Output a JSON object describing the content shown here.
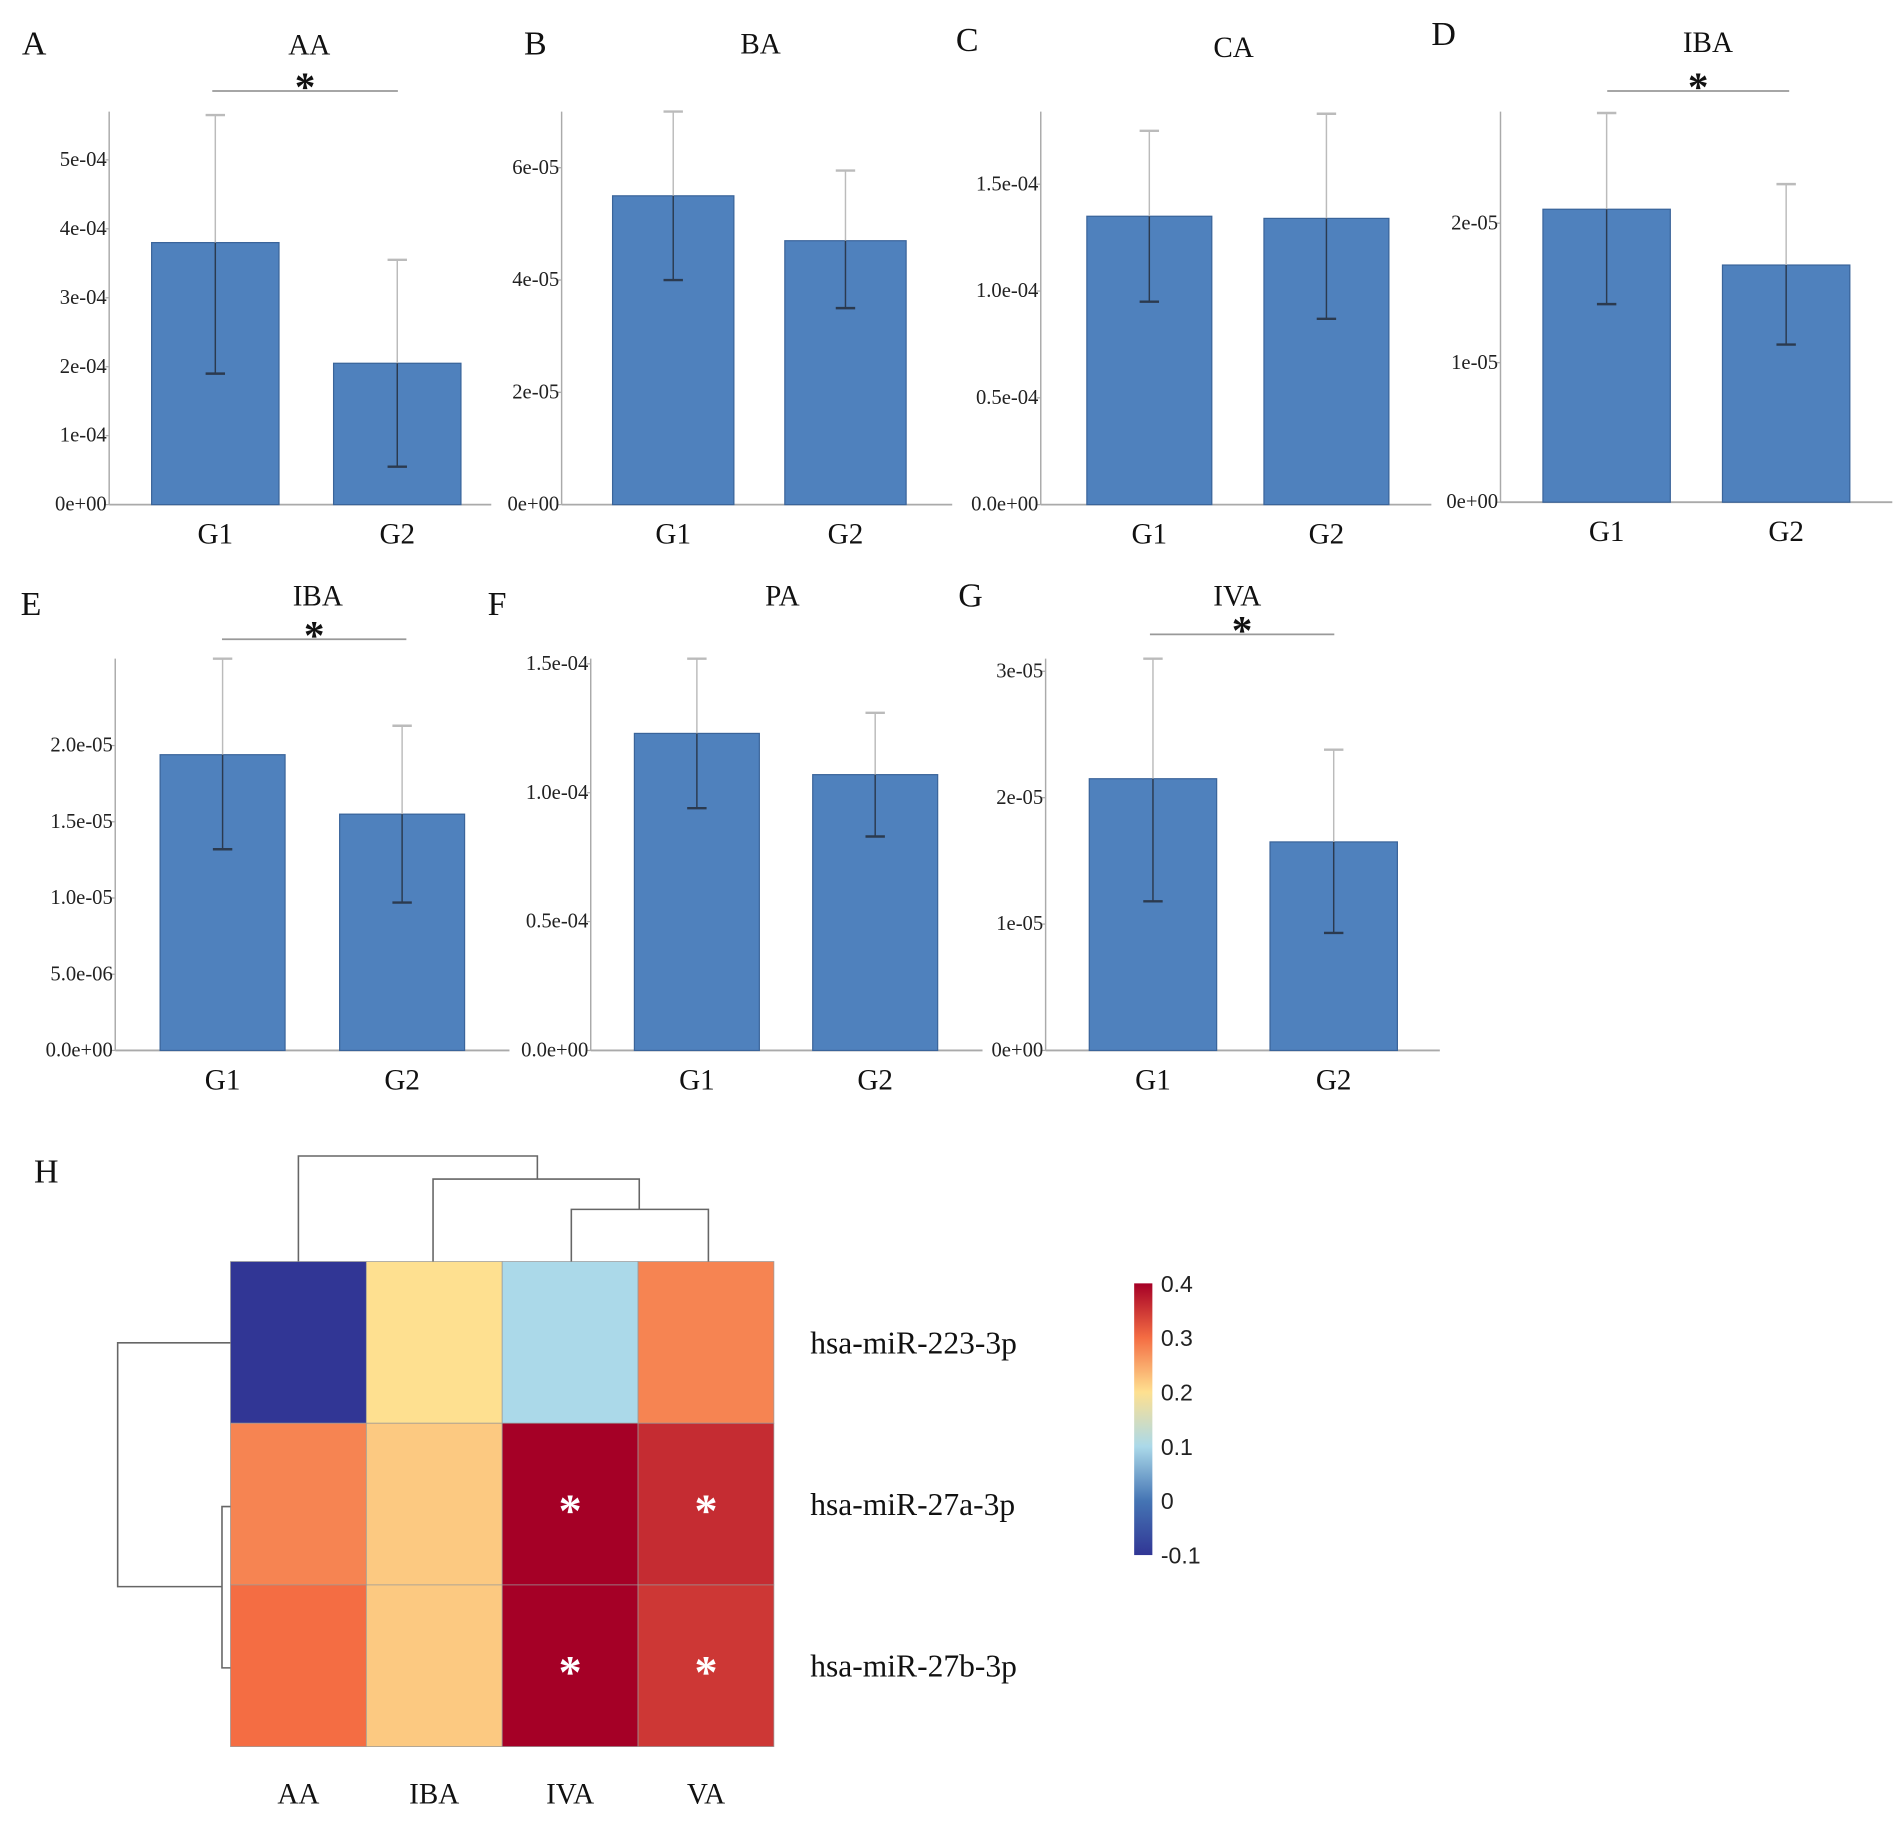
{
  "colors": {
    "bar": "#4f81bd",
    "bar_edge": "#3a649a",
    "axis": "#aaaaaa",
    "err": "#2b3a4f"
  },
  "chart_data": [
    {
      "type": "bar",
      "panel": "A",
      "title": "AA",
      "significant": true,
      "sig_mark": "*",
      "categories": [
        "G1",
        "G2"
      ],
      "values": [
        0.00038,
        0.000205
      ],
      "err_low": [
        0.00019,
        5.5e-05
      ],
      "err_high": [
        0.000565,
        0.000355
      ],
      "yticks": [
        0,
        0.0001,
        0.0002,
        0.0003,
        0.0004,
        0.0005
      ],
      "ytick_labels": [
        "0e+00",
        "1e-04",
        "2e-04",
        "3e-04",
        "4e-04",
        "5e-04"
      ],
      "ylim": [
        0,
        0.00057
      ]
    },
    {
      "type": "bar",
      "panel": "B",
      "title": "BA",
      "significant": false,
      "categories": [
        "G1",
        "G2"
      ],
      "values": [
        5.5e-05,
        4.7e-05
      ],
      "err_low": [
        4e-05,
        3.5e-05
      ],
      "err_high": [
        7e-05,
        5.95e-05
      ],
      "yticks": [
        0,
        2e-05,
        4e-05,
        6e-05
      ],
      "ytick_labels": [
        "0e+00",
        "2e-05",
        "4e-05",
        "6e-05"
      ],
      "ylim": [
        0,
        7e-05
      ]
    },
    {
      "type": "bar",
      "panel": "C",
      "title": "CA",
      "significant": false,
      "categories": [
        "G1",
        "G2"
      ],
      "values": [
        0.000135,
        0.000134
      ],
      "err_low": [
        9.5e-05,
        8.7e-05
      ],
      "err_high": [
        0.000175,
        0.000183
      ],
      "yticks": [
        0,
        5e-05,
        0.0001,
        0.00015
      ],
      "ytick_labels": [
        "0.0e+00",
        "0.5e-04",
        "1.0e-04",
        "1.5e-04"
      ],
      "ylim": [
        0,
        0.000184
      ]
    },
    {
      "type": "bar",
      "panel": "D",
      "title": "IBA",
      "significant": true,
      "sig_mark": "*",
      "categories": [
        "G1",
        "G2"
      ],
      "values": [
        2.1e-05,
        1.7e-05
      ],
      "err_low": [
        1.42e-05,
        1.13e-05
      ],
      "err_high": [
        2.79e-05,
        2.28e-05
      ],
      "yticks": [
        0,
        1e-05,
        2e-05
      ],
      "ytick_labels": [
        "0e+00",
        "1e-05",
        "2e-05"
      ],
      "ylim": [
        0,
        2.8e-05
      ]
    },
    {
      "type": "bar",
      "panel": "E",
      "title": "IBA",
      "significant": true,
      "sig_mark": "*",
      "categories": [
        "G1",
        "G2"
      ],
      "values": [
        1.94e-05,
        1.55e-05
      ],
      "err_low": [
        1.32e-05,
        9.7e-06
      ],
      "err_high": [
        2.57e-05,
        2.13e-05
      ],
      "yticks": [
        0,
        5e-06,
        1e-05,
        1.5e-05,
        2e-05
      ],
      "ytick_labels": [
        "0.0e+00",
        "5.0e-06",
        "1.0e-05",
        "1.5e-05",
        "2.0e-05"
      ],
      "ylim": [
        0,
        2.57e-05
      ]
    },
    {
      "type": "bar",
      "panel": "F",
      "title": "PA",
      "significant": false,
      "categories": [
        "G1",
        "G2"
      ],
      "values": [
        0.000123,
        0.000107
      ],
      "err_low": [
        9.4e-05,
        8.3e-05
      ],
      "err_high": [
        0.000152,
        0.000131
      ],
      "yticks": [
        0,
        5e-05,
        0.0001,
        0.00015
      ],
      "ytick_labels": [
        "0.0e+00",
        "0.5e-04",
        "1.0e-04",
        "1.5e-04"
      ],
      "ylim": [
        0,
        0.000152
      ]
    },
    {
      "type": "bar",
      "panel": "G",
      "title": "IVA",
      "significant": true,
      "sig_mark": "*",
      "categories": [
        "G1",
        "G2"
      ],
      "values": [
        2.15e-05,
        1.65e-05
      ],
      "err_low": [
        1.18e-05,
        9.3e-06
      ],
      "err_high": [
        3.1e-05,
        2.38e-05
      ],
      "yticks": [
        0,
        1e-05,
        2e-05,
        3e-05
      ],
      "ytick_labels": [
        "0e+00",
        "1e-05",
        "2e-05",
        "3e-05"
      ],
      "ylim": [
        0,
        3.1e-05
      ]
    },
    {
      "type": "heatmap",
      "panel": "H",
      "columns": [
        "AA",
        "IBA",
        "IVA",
        "VA"
      ],
      "rows": [
        "hsa-miR-223-3p",
        "hsa-miR-27a-3p",
        "hsa-miR-27b-3p"
      ],
      "values": [
        [
          -0.1,
          0.2,
          0.1,
          0.28
        ],
        [
          0.28,
          0.22,
          0.4,
          0.36
        ],
        [
          0.3,
          0.22,
          0.4,
          0.35
        ]
      ],
      "significant": [
        [
          false,
          false,
          false,
          false
        ],
        [
          false,
          false,
          true,
          true
        ],
        [
          false,
          false,
          true,
          true
        ]
      ],
      "sig_mark": "*",
      "colorbar": {
        "ticks": [
          0.4,
          0.3,
          0.2,
          0.1,
          0,
          -0.1
        ],
        "tick_labels": [
          "0.4",
          "0.3",
          "0.2",
          "0.1",
          "0",
          "-0.1"
        ],
        "range": [
          -0.1,
          0.4
        ],
        "stops": [
          [
            -0.1,
            "#313695"
          ],
          [
            0.0,
            "#4575b4"
          ],
          [
            0.1,
            "#abd9e9"
          ],
          [
            0.2,
            "#fee090"
          ],
          [
            0.3,
            "#f46d43"
          ],
          [
            0.4,
            "#a50026"
          ]
        ]
      }
    }
  ]
}
